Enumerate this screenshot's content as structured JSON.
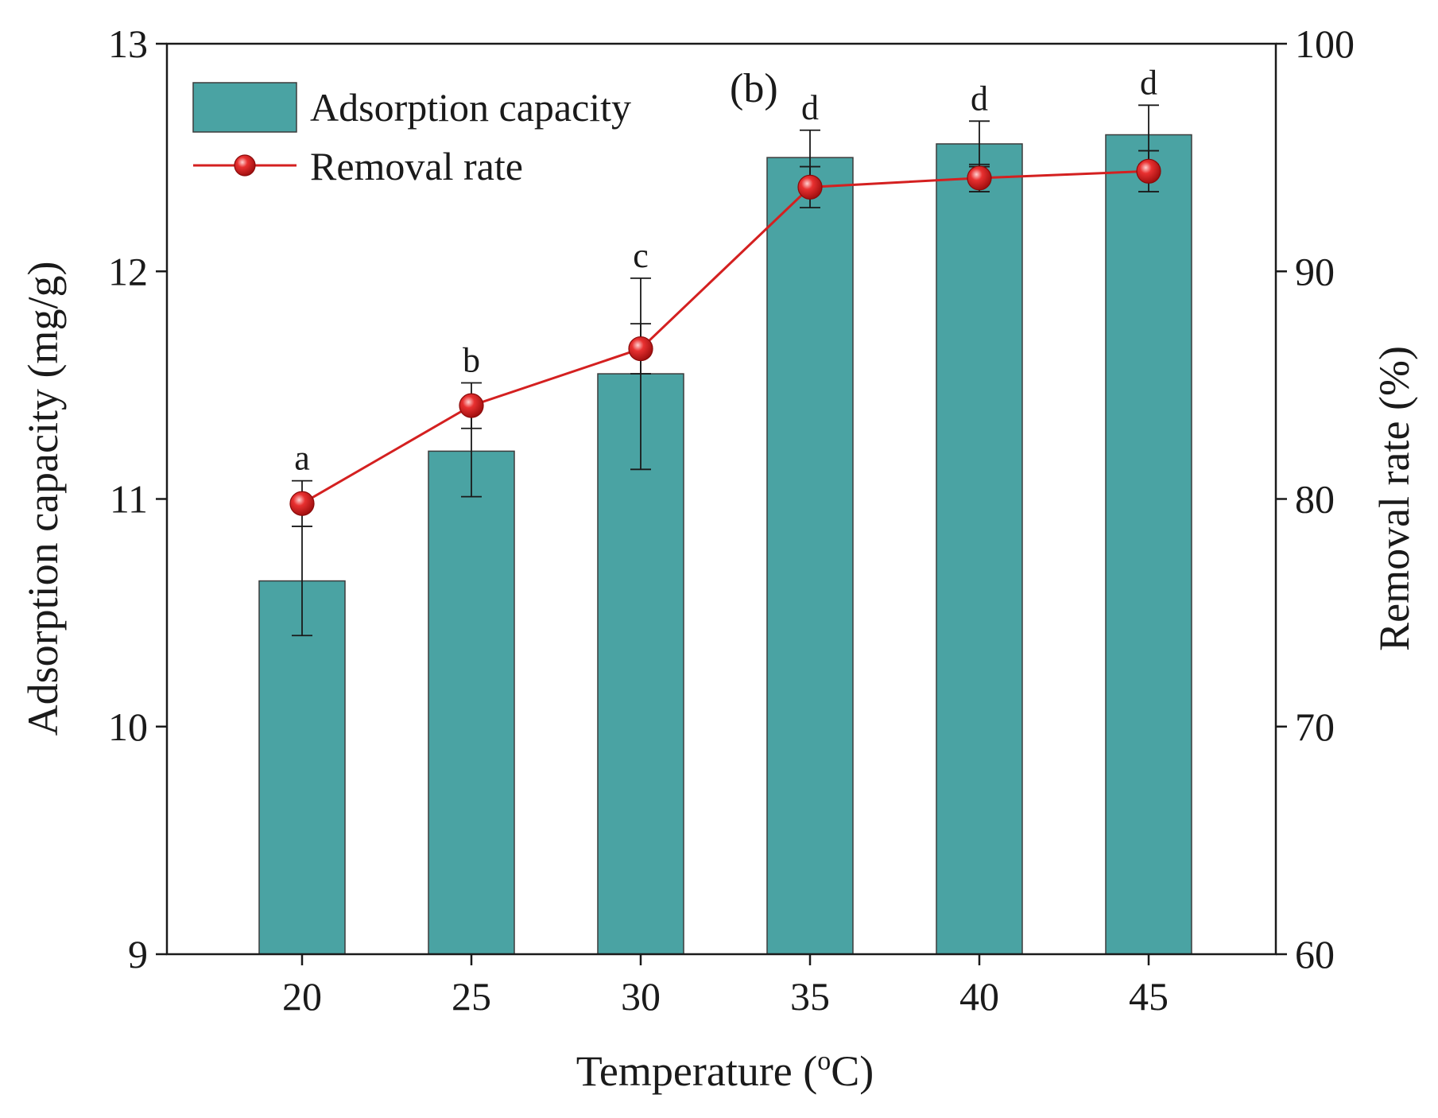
{
  "chart_data": {
    "type": "bar",
    "panel_label": "(b)",
    "xlabel": {
      "prefix": "Temperature (",
      "sup": "o",
      "suffix": "C)"
    },
    "ylabel_left": "Adsorption capacity (mg/g)",
    "ylabel_right": "Removal rate (%)",
    "categories": [
      "20",
      "25",
      "30",
      "35",
      "40",
      "45"
    ],
    "ylim_left": [
      9,
      13
    ],
    "yticks_left": [
      9,
      10,
      11,
      12,
      13
    ],
    "ylim_right": [
      60,
      100
    ],
    "yticks_right": [
      60,
      70,
      80,
      90,
      100
    ],
    "series": [
      {
        "name": "Adsorption capacity",
        "type": "bar",
        "axis": "left",
        "color": "#4aa3a3",
        "values": [
          10.64,
          11.21,
          11.55,
          12.5,
          12.56,
          12.6
        ],
        "errors": [
          0.24,
          0.2,
          0.42,
          0.12,
          0.1,
          0.13
        ]
      },
      {
        "name": "Removal rate",
        "type": "line",
        "axis": "right",
        "color": "#d42020",
        "values": [
          79.8,
          84.1,
          86.6,
          93.7,
          94.1,
          94.4
        ],
        "errors": [
          1.0,
          1.0,
          1.1,
          0.9,
          0.6,
          0.9
        ]
      }
    ],
    "significance_letters": [
      "a",
      "b",
      "c",
      "d",
      "d",
      "d"
    ],
    "legend": {
      "position": "top-left",
      "entries": [
        "Adsorption capacity",
        "Removal rate"
      ]
    }
  }
}
